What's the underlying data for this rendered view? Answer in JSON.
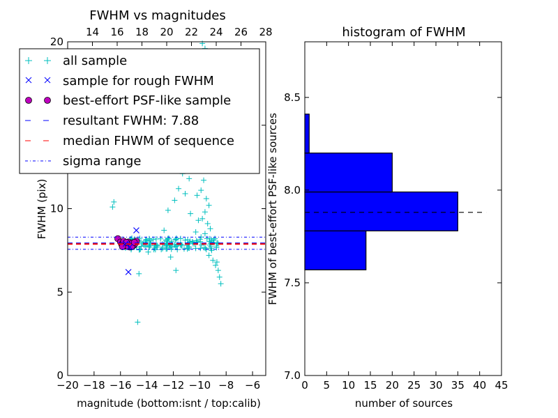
{
  "chart_data": [
    {
      "type": "scatter",
      "title": "FWHM vs magnitudes",
      "xlabel": "magnitude (bottom:isnt / top:calib)",
      "ylabel": "FWHM (pix)",
      "xlim": [
        -20,
        -5
      ],
      "ylim": [
        0,
        20
      ],
      "x_ticks": [
        -20,
        -18,
        -16,
        -14,
        -12,
        -10,
        -8,
        -6
      ],
      "x_tick_labels": [
        "−20",
        "−18",
        "−16",
        "−14",
        "−12",
        "−10",
        "−8",
        "−6"
      ],
      "y_ticks": [
        0,
        5,
        10,
        15,
        20
      ],
      "y_tick_labels": [
        "0",
        "5",
        "10",
        "15",
        "20"
      ],
      "top_axis": {
        "xlim": [
          12,
          28
        ],
        "ticks": [
          14,
          16,
          18,
          20,
          22,
          24,
          26,
          28
        ],
        "tick_labels": [
          "14",
          "16",
          "18",
          "20",
          "22",
          "24",
          "26",
          "28"
        ]
      },
      "legend": {
        "placement": "top-left",
        "entries": [
          {
            "label": "all sample",
            "marker": "+",
            "color": "#00bfbf"
          },
          {
            "label": "sample for rough FWHM",
            "marker": "x",
            "color": "#0000ff"
          },
          {
            "label": "best-effort PSF-like sample",
            "marker": "o",
            "color": "#bf00bf"
          },
          {
            "label": "resultant FWHM: 7.88",
            "linestyle": "dashed",
            "color": "#0000ff"
          },
          {
            "label": "median FHWM of sequence",
            "linestyle": "dashed",
            "color": "#ff0000"
          },
          {
            "label": "sigma range",
            "linestyle": "dashdot",
            "color": "#0000ff"
          }
        ]
      },
      "series": [
        {
          "name": "all sample",
          "kind": "scatter",
          "marker": "+",
          "color": "#00bfbf",
          "points": [
            [
              -16.6,
              10.1
            ],
            [
              -16.5,
              10.4
            ],
            [
              -14.7,
              3.2
            ],
            [
              -14.6,
              6.1
            ],
            [
              -13.9,
              7.4
            ],
            [
              -11.8,
              6.3
            ],
            [
              -12.2,
              7.1
            ],
            [
              -10.5,
              7.9
            ],
            [
              -11.3,
              12.1
            ],
            [
              -11.0,
              12.9
            ],
            [
              -10.8,
              11.8
            ],
            [
              -10.6,
              13.6
            ],
            [
              -11.6,
              11.2
            ],
            [
              -11.9,
              10.5
            ],
            [
              -9.8,
              19.9
            ],
            [
              -9.6,
              19.6
            ],
            [
              -9.7,
              18.2
            ],
            [
              -9.9,
              16.4
            ],
            [
              -9.5,
              15.1
            ],
            [
              -9.8,
              14.2
            ],
            [
              -9.6,
              13.1
            ],
            [
              -9.4,
              12.4
            ],
            [
              -9.7,
              11.7
            ],
            [
              -9.9,
              11.1
            ],
            [
              -9.5,
              10.6
            ],
            [
              -9.3,
              10.2
            ],
            [
              -9.6,
              9.8
            ],
            [
              -9.8,
              9.4
            ],
            [
              -9.4,
              9.1
            ],
            [
              -9.2,
              8.8
            ],
            [
              -9.6,
              8.5
            ],
            [
              -9.9,
              8.3
            ],
            [
              -9.1,
              8.1
            ],
            [
              -9.3,
              7.2
            ],
            [
              -9.0,
              6.9
            ],
            [
              -8.8,
              6.6
            ],
            [
              -8.6,
              6.3
            ],
            [
              -8.5,
              5.9
            ],
            [
              -8.4,
              5.5
            ],
            [
              -8.7,
              6.8
            ],
            [
              -9.1,
              7.5
            ],
            [
              -10.2,
              10.8
            ],
            [
              -10.4,
              12.6
            ],
            [
              -10.1,
              9.3
            ],
            [
              -10.3,
              8.6
            ],
            [
              -10.7,
              9.7
            ],
            [
              -11.1,
              10.9
            ],
            [
              -12.4,
              9.9
            ],
            [
              -12.7,
              8.7
            ]
          ]
        },
        {
          "name": "all sample (dense band)",
          "kind": "band",
          "marker": "+",
          "color": "#00bfbf",
          "x_range": [
            -15.8,
            -8.4
          ],
          "y_center": 7.88,
          "y_spread": 0.35,
          "count": 140
        },
        {
          "name": "sample for rough FWHM",
          "kind": "scatter",
          "marker": "x",
          "color": "#0000ff",
          "points": [
            [
              -14.8,
              8.7
            ],
            [
              -15.4,
              6.2
            ],
            [
              -15.6,
              7.9
            ],
            [
              -15.3,
              7.7
            ]
          ]
        },
        {
          "name": "best-effort PSF-like sample",
          "kind": "scatter",
          "marker": "o",
          "color": "#bf00bf",
          "points": [
            [
              -16.2,
              8.2
            ],
            [
              -16.0,
              8.0
            ],
            [
              -15.9,
              7.85
            ],
            [
              -15.8,
              7.95
            ],
            [
              -15.7,
              7.75
            ],
            [
              -15.6,
              7.9
            ],
            [
              -15.5,
              7.8
            ],
            [
              -15.4,
              8.0
            ],
            [
              -15.3,
              7.7
            ],
            [
              -15.2,
              7.85
            ],
            [
              -15.1,
              7.95
            ],
            [
              -15.0,
              7.8
            ],
            [
              -14.9,
              7.9
            ],
            [
              -14.8,
              8.05
            ],
            [
              -15.75,
              8.05
            ],
            [
              -15.45,
              7.75
            ],
            [
              -15.15,
              7.72
            ],
            [
              -14.95,
              7.98
            ],
            [
              -15.55,
              7.98
            ],
            [
              -15.85,
              7.72
            ]
          ]
        }
      ],
      "reference_lines": [
        {
          "name": "resultant FWHM",
          "y": 7.88,
          "linestyle": "dashed",
          "color": "#0000ff"
        },
        {
          "name": "median FHWM of sequence",
          "y": 7.88,
          "linestyle": "dashed",
          "color": "#ff0000"
        },
        {
          "name": "sigma range upper",
          "y": 8.25,
          "linestyle": "dashdot",
          "color": "#0000ff"
        },
        {
          "name": "sigma range lower",
          "y": 7.52,
          "linestyle": "dashdot",
          "color": "#0000ff"
        }
      ]
    },
    {
      "type": "bar",
      "orientation": "horizontal",
      "title": "histogram of FWHM",
      "xlabel": "number of sources",
      "ylabel": "FWHM of best-effort PSF-like sources",
      "xlim": [
        0,
        45
      ],
      "ylim": [
        7.0,
        8.8
      ],
      "x_ticks": [
        0,
        5,
        10,
        15,
        20,
        25,
        30,
        35,
        40,
        45
      ],
      "x_tick_labels": [
        "0",
        "5",
        "10",
        "15",
        "20",
        "25",
        "30",
        "35",
        "40",
        "45"
      ],
      "y_ticks": [
        7.0,
        7.5,
        8.0,
        8.5
      ],
      "y_tick_labels": [
        "7.0",
        "7.5",
        "8.0",
        "8.5"
      ],
      "bar_color": "#0000ff",
      "bins": [
        {
          "low": 7.57,
          "high": 7.78,
          "count": 14
        },
        {
          "low": 7.78,
          "high": 7.99,
          "count": 35
        },
        {
          "low": 7.99,
          "high": 8.2,
          "count": 20
        },
        {
          "low": 8.2,
          "high": 8.41,
          "count": 1
        }
      ],
      "reference_lines": [
        {
          "name": "resultant FWHM",
          "y": 7.88,
          "x_range": [
            0,
            41.5
          ],
          "linestyle": "dashed",
          "color": "#000000"
        }
      ]
    }
  ]
}
